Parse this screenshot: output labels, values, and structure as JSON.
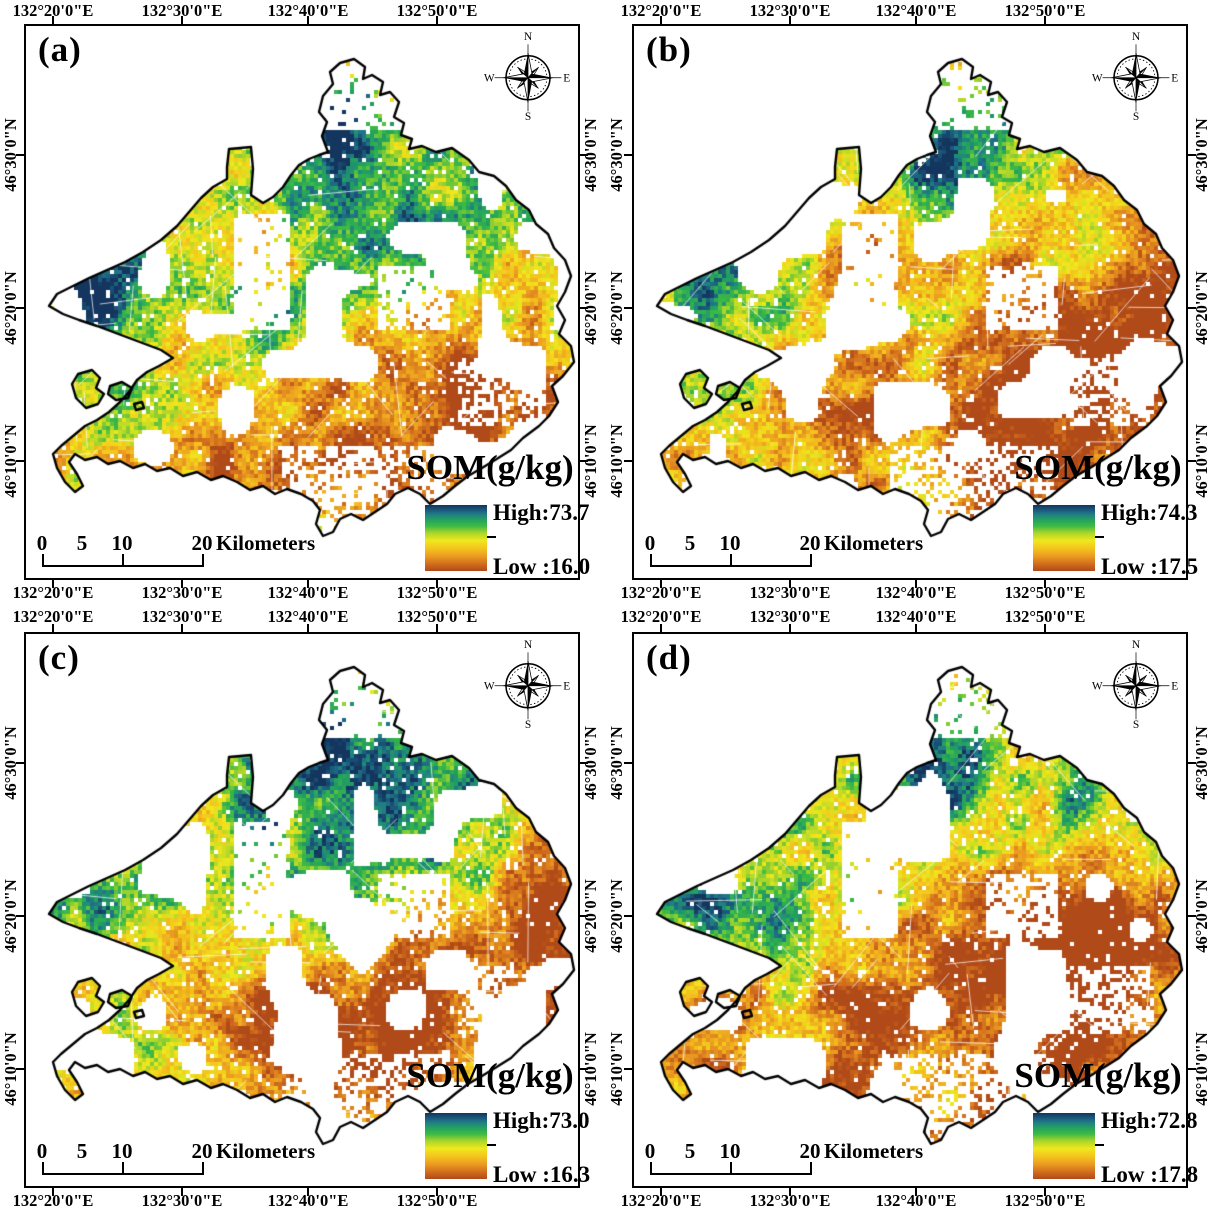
{
  "figure": {
    "panels": [
      {
        "id": "a",
        "label": "(a)",
        "legend_title": "SOM(g/kg)",
        "legend_high": "High:73.7",
        "legend_low": "Low :16.0"
      },
      {
        "id": "b",
        "label": "(b)",
        "legend_title": "SOM(g/kg)",
        "legend_high": "High:74.3",
        "legend_low": "Low :17.5"
      },
      {
        "id": "c",
        "label": "(c)",
        "legend_title": "SOM(g/kg)",
        "legend_high": "High:73.0",
        "legend_low": "Low :16.3"
      },
      {
        "id": "d",
        "label": "(d)",
        "legend_title": "SOM(g/kg)",
        "legend_high": "High:72.8",
        "legend_low": "Low :17.8"
      }
    ],
    "map_values": [
      {
        "panel": "a",
        "high": 73.7,
        "low": 16.0
      },
      {
        "panel": "b",
        "high": 74.3,
        "low": 17.5
      },
      {
        "panel": "c",
        "high": 73.0,
        "low": 16.3
      },
      {
        "panel": "d",
        "high": 72.8,
        "low": 17.8
      }
    ],
    "lon_labels": [
      "132°20'0\"E",
      "132°30'0\"E",
      "132°40'0\"E",
      "132°50'0\"E"
    ],
    "lat_labels": [
      "46°30'0\"N",
      "46°20'0\"N",
      "46°10'0\"N"
    ],
    "compass": {
      "n": "N",
      "e": "E",
      "s": "S",
      "w": "W"
    },
    "scalebar": {
      "labels": [
        "0",
        "5",
        "10",
        "20"
      ],
      "unit": "Kilometers"
    },
    "colors": {
      "outline": "#000000",
      "background": "#ffffff",
      "ramp": [
        [
          0.0,
          "#b04a18"
        ],
        [
          0.1,
          "#cf6a1d"
        ],
        [
          0.22,
          "#ea9a21"
        ],
        [
          0.34,
          "#f4c41d"
        ],
        [
          0.46,
          "#f0e81d"
        ],
        [
          0.58,
          "#a8d52b"
        ],
        [
          0.68,
          "#3dbb45"
        ],
        [
          0.78,
          "#23a05f"
        ],
        [
          0.86,
          "#207b88"
        ],
        [
          0.93,
          "#1b5579"
        ],
        [
          1.0,
          "#13355e"
        ]
      ]
    }
  }
}
